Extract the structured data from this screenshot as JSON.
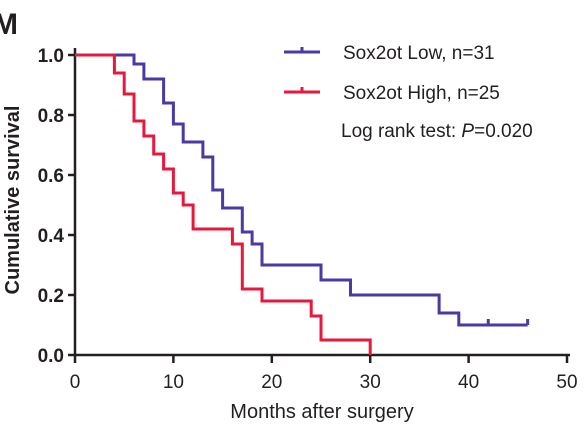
{
  "panel_letter": "M",
  "chart_data": {
    "type": "line",
    "step": "post",
    "xlabel": "Months after surgery",
    "ylabel": "Cumulative survival",
    "xlim": [
      0,
      50
    ],
    "ylim": [
      0,
      1.0
    ],
    "xticks": [
      0,
      10,
      20,
      30,
      40,
      50
    ],
    "yticks": [
      0.0,
      0.2,
      0.4,
      0.6,
      0.8,
      1.0
    ],
    "ytick_labels": [
      "0.0",
      "0.2",
      "0.4",
      "0.6",
      "0.8",
      "1.0"
    ],
    "grid": false,
    "legend_position": "top-right",
    "annotation": {
      "prefix": "Log rank test: ",
      "italic": "P",
      "suffix": "=0.020"
    },
    "series": [
      {
        "name": "Sox2ot Low, n=31",
        "color": "#4a3aa3",
        "x": [
          0,
          6,
          7,
          9,
          10,
          11,
          13,
          14,
          15,
          17,
          18,
          19,
          25,
          28,
          37,
          39,
          46
        ],
        "y": [
          1.0,
          0.97,
          0.92,
          0.84,
          0.77,
          0.71,
          0.66,
          0.55,
          0.49,
          0.41,
          0.37,
          0.3,
          0.25,
          0.2,
          0.14,
          0.1,
          0.1
        ],
        "censored_x": [
          42,
          46
        ]
      },
      {
        "name": "Sox2ot High, n=25",
        "color": "#e8173c",
        "x": [
          0,
          4,
          5,
          6,
          7,
          8,
          9,
          10,
          11,
          12,
          16,
          17,
          19,
          24,
          25,
          30
        ],
        "y": [
          1.0,
          0.94,
          0.87,
          0.78,
          0.73,
          0.67,
          0.62,
          0.54,
          0.5,
          0.42,
          0.37,
          0.22,
          0.18,
          0.13,
          0.05,
          0.0
        ],
        "censored_x": []
      }
    ]
  }
}
